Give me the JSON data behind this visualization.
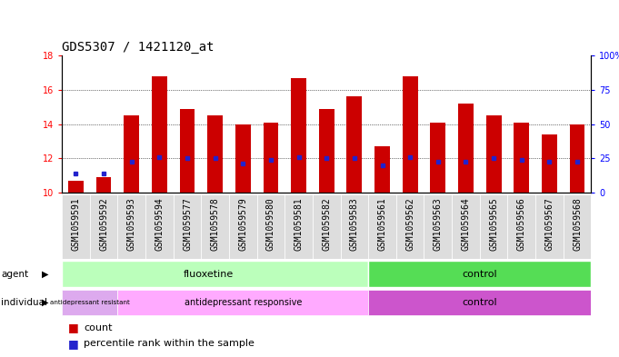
{
  "title": "GDS5307 / 1421120_at",
  "samples": [
    "GSM1059591",
    "GSM1059592",
    "GSM1059593",
    "GSM1059594",
    "GSM1059577",
    "GSM1059578",
    "GSM1059579",
    "GSM1059580",
    "GSM1059581",
    "GSM1059582",
    "GSM1059583",
    "GSM1059561",
    "GSM1059562",
    "GSM1059563",
    "GSM1059564",
    "GSM1059565",
    "GSM1059566",
    "GSM1059567",
    "GSM1059568"
  ],
  "red_values": [
    10.7,
    10.9,
    14.5,
    16.8,
    14.9,
    14.5,
    14.0,
    14.1,
    16.7,
    14.9,
    15.6,
    12.7,
    16.8,
    14.1,
    15.2,
    14.5,
    14.1,
    13.4,
    14.0
  ],
  "blue_values": [
    11.1,
    11.1,
    11.8,
    12.1,
    12.0,
    12.0,
    11.7,
    11.9,
    12.1,
    12.0,
    12.0,
    11.6,
    12.1,
    11.8,
    11.8,
    12.0,
    11.9,
    11.8,
    11.8
  ],
  "ymin": 10,
  "ymax": 18,
  "yticks": [
    10,
    12,
    14,
    16,
    18
  ],
  "right_yticks": [
    0,
    25,
    50,
    75,
    100
  ],
  "right_yticklabels": [
    "0",
    "25",
    "50",
    "75",
    "100%"
  ],
  "bar_color": "#cc0000",
  "dot_color": "#2222cc",
  "bar_width": 0.55,
  "tick_fontsize": 7,
  "title_fontsize": 10,
  "fluoxetine_color": "#bbffbb",
  "control_agent_color": "#55dd55",
  "resist_color": "#ddaaee",
  "responsive_color": "#ffaaff",
  "control_indiv_color": "#cc55cc",
  "gray_box_color": "#dddddd"
}
